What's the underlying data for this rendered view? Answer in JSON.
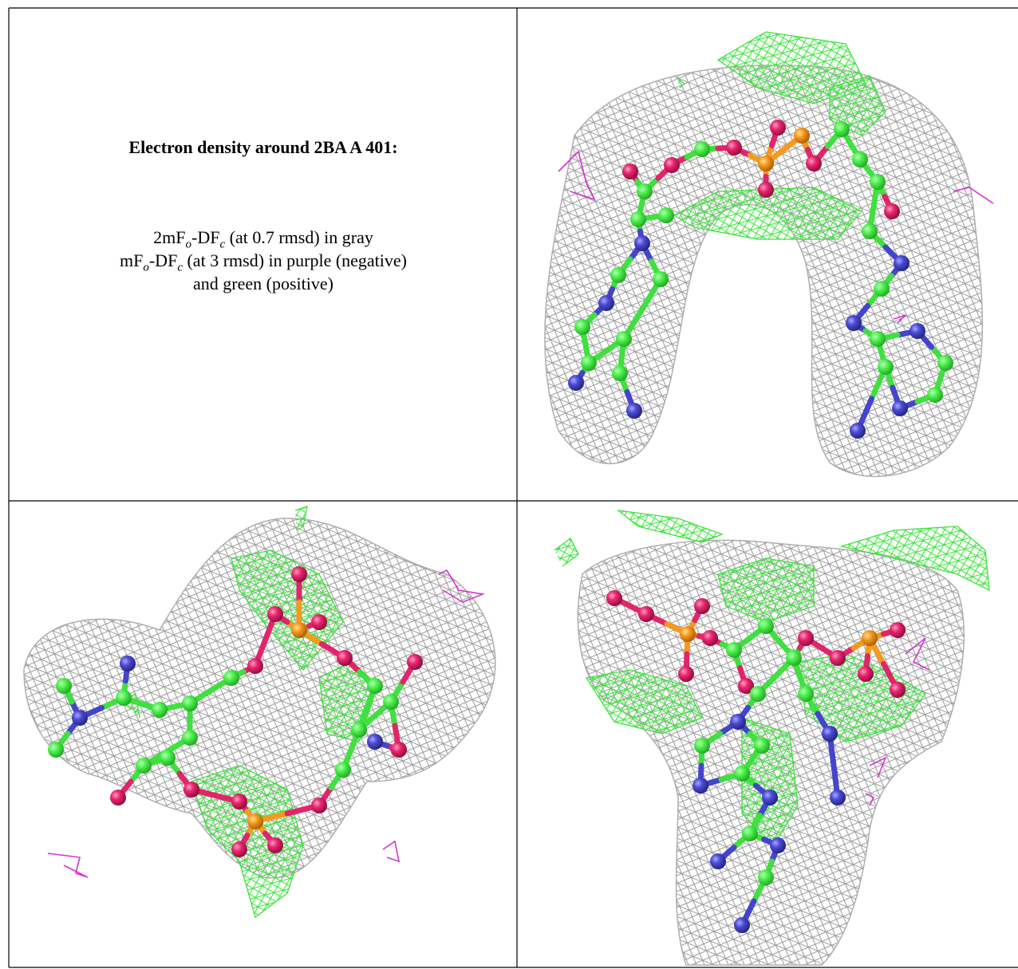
{
  "header": {
    "title": "Electron density around 2BA A 401:"
  },
  "legend": {
    "lines": [
      [
        "2mF",
        "o",
        "-DF",
        "c",
        " (at 0.7 rmsd) in gray"
      ],
      [
        "mF",
        "o",
        "-DF",
        "c",
        " (at 3 rmsd) in purple (negative)"
      ],
      [
        "and green (positive)"
      ]
    ]
  }
}
